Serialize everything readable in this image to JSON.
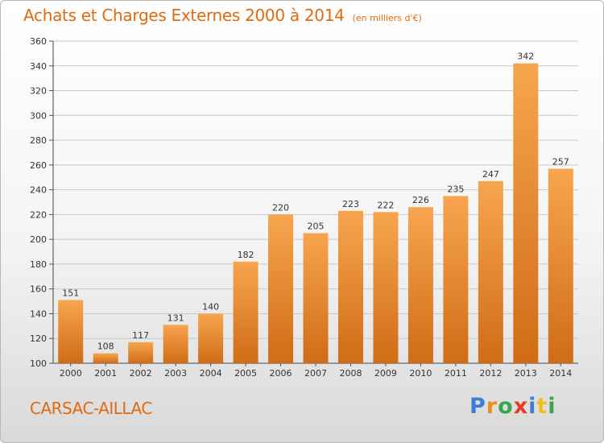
{
  "header": {
    "title": "Achats et Charges Externes 2000 à 2014",
    "subtitle": "(en milliers d'€)"
  },
  "footer": {
    "commune": "CARSAC-AILLAC",
    "logo_text": "Proxiti",
    "logo_colors": [
      "#3a7fd5",
      "#f28c1a",
      "#3aa64a",
      "#e83a2a",
      "#3a7fd5",
      "#f2c01a",
      "#3aa64a"
    ]
  },
  "colors": {
    "bar_light": "#f7a54f",
    "bar_dark": "#d06c16",
    "grid": "#c8c8c8",
    "title": "#e06a10"
  },
  "chart_data": {
    "type": "bar",
    "categories": [
      "2000",
      "2001",
      "2002",
      "2003",
      "2004",
      "2005",
      "2006",
      "2007",
      "2008",
      "2009",
      "2010",
      "2011",
      "2012",
      "2013",
      "2014"
    ],
    "values": [
      151,
      108,
      117,
      131,
      140,
      182,
      220,
      205,
      223,
      222,
      226,
      235,
      247,
      342,
      257
    ],
    "title": "Achats et Charges Externes 2000 à 2014",
    "subtitle": "(en milliers d'€)",
    "xlabel": "",
    "ylabel": "",
    "ylim": [
      100,
      360
    ],
    "yticks": [
      100,
      120,
      140,
      160,
      180,
      200,
      220,
      240,
      260,
      280,
      300,
      320,
      340,
      360
    ],
    "grid": true,
    "legend": "none"
  }
}
